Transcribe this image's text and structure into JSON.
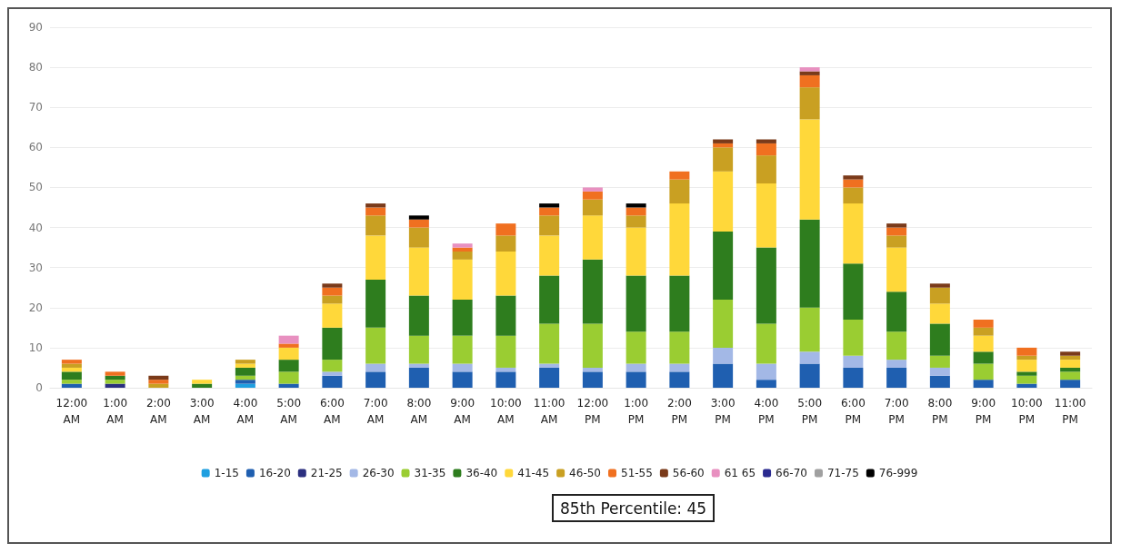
{
  "chart_data": {
    "type": "bar",
    "stacked": true,
    "categories": [
      "12:00 AM",
      "1:00 AM",
      "2:00 AM",
      "3:00 AM",
      "4:00 AM",
      "5:00 AM",
      "6:00 AM",
      "7:00 AM",
      "8:00 AM",
      "9:00 AM",
      "10:00 AM",
      "11:00 AM",
      "12:00 PM",
      "1:00 PM",
      "2:00 PM",
      "3:00 PM",
      "4:00 PM",
      "5:00 PM",
      "6:00 PM",
      "7:00 PM",
      "8:00 PM",
      "9:00 PM",
      "10:00 PM",
      "11:00 PM"
    ],
    "series": [
      {
        "name": "1-15",
        "color": "#1f9fe0",
        "values": [
          0,
          0,
          0,
          0,
          1,
          0,
          0,
          0,
          0,
          0,
          0,
          0,
          0,
          0,
          0,
          0,
          0,
          0,
          0,
          0,
          0,
          0,
          0,
          0
        ]
      },
      {
        "name": "16-20",
        "color": "#1f5fb0",
        "values": [
          1,
          0,
          0,
          0,
          1,
          1,
          3,
          4,
          5,
          4,
          4,
          5,
          4,
          4,
          4,
          6,
          2,
          6,
          5,
          5,
          3,
          2,
          1,
          2
        ]
      },
      {
        "name": "21-25",
        "color": "#2b2f7f",
        "values": [
          0,
          1,
          0,
          0,
          0,
          0,
          0,
          0,
          0,
          0,
          0,
          0,
          0,
          0,
          0,
          0,
          0,
          0,
          0,
          0,
          0,
          0,
          0,
          0
        ]
      },
      {
        "name": "26-30",
        "color": "#a3b8e6",
        "values": [
          0,
          0,
          0,
          0,
          0,
          0,
          1,
          2,
          1,
          2,
          1,
          1,
          1,
          2,
          2,
          4,
          4,
          3,
          3,
          2,
          2,
          0,
          0,
          0
        ]
      },
      {
        "name": "31-35",
        "color": "#9acd32",
        "values": [
          1,
          1,
          0,
          0,
          1,
          3,
          3,
          9,
          7,
          7,
          8,
          10,
          11,
          8,
          8,
          12,
          10,
          11,
          9,
          7,
          3,
          4,
          2,
          2
        ]
      },
      {
        "name": "36-40",
        "color": "#2e7d1e",
        "values": [
          2,
          1,
          0,
          1,
          2,
          3,
          8,
          12,
          10,
          9,
          10,
          12,
          16,
          14,
          14,
          17,
          19,
          22,
          14,
          10,
          8,
          3,
          1,
          1
        ]
      },
      {
        "name": "41-45",
        "color": "#ffd83a",
        "values": [
          1,
          0,
          0,
          1,
          1,
          3,
          6,
          11,
          12,
          10,
          11,
          10,
          11,
          12,
          18,
          15,
          16,
          25,
          15,
          11,
          5,
          4,
          3,
          2
        ]
      },
      {
        "name": "46-50",
        "color": "#c9a022",
        "values": [
          1,
          0,
          1,
          0,
          1,
          0,
          2,
          5,
          5,
          2,
          4,
          5,
          4,
          3,
          6,
          6,
          7,
          8,
          4,
          3,
          4,
          2,
          1,
          1
        ]
      },
      {
        "name": "51-55",
        "color": "#f07020",
        "values": [
          1,
          1,
          1,
          0,
          0,
          1,
          2,
          2,
          2,
          1,
          3,
          2,
          2,
          2,
          2,
          1,
          3,
          3,
          2,
          2,
          0,
          2,
          2,
          0
        ]
      },
      {
        "name": "56-60",
        "color": "#7a3a1a",
        "values": [
          0,
          0,
          1,
          0,
          0,
          0,
          1,
          1,
          0,
          0,
          0,
          0,
          0,
          0,
          0,
          1,
          1,
          1,
          1,
          1,
          1,
          0,
          0,
          1
        ]
      },
      {
        "name": "61 65",
        "color": "#e890c0",
        "values": [
          0,
          0,
          0,
          0,
          0,
          2,
          0,
          0,
          0,
          1,
          0,
          0,
          1,
          0,
          0,
          0,
          0,
          1,
          0,
          0,
          0,
          0,
          0,
          0
        ]
      },
      {
        "name": "66-70",
        "color": "#2a2a90",
        "values": [
          0,
          0,
          0,
          0,
          0,
          0,
          0,
          0,
          0,
          0,
          0,
          0,
          0,
          0,
          0,
          0,
          0,
          0,
          0,
          0,
          0,
          0,
          0,
          0
        ]
      },
      {
        "name": "71-75",
        "color": "#a0a0a0",
        "values": [
          0,
          0,
          0,
          0,
          0,
          0,
          0,
          0,
          0,
          0,
          0,
          0,
          0,
          0,
          0,
          0,
          0,
          0,
          0,
          0,
          0,
          0,
          0,
          0
        ]
      },
      {
        "name": "76-999",
        "color": "#000000",
        "values": [
          0,
          0,
          0,
          0,
          0,
          0,
          0,
          0,
          1,
          0,
          0,
          1,
          0,
          1,
          0,
          0,
          0,
          0,
          0,
          0,
          0,
          0,
          0,
          0
        ]
      }
    ],
    "ylim": [
      0,
      90
    ],
    "yticks": [
      0,
      10,
      20,
      30,
      40,
      50,
      60,
      70,
      80,
      90
    ],
    "grid": "y",
    "legend": "bottom",
    "annotations": [
      "85th Percentile: 45"
    ]
  }
}
